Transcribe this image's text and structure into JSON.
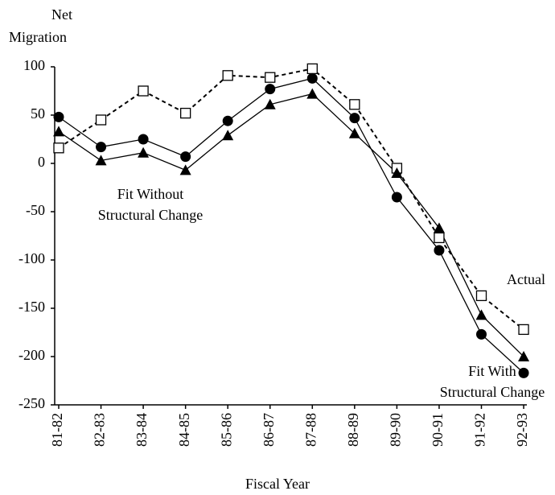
{
  "chart_data": {
    "type": "line",
    "y_label": [
      "Net",
      "Migration"
    ],
    "x_label": "Fiscal Year",
    "categories": [
      "81-82",
      "82-83",
      "83-84",
      "84-85",
      "85-86",
      "86-87",
      "87-88",
      "88-89",
      "89-90",
      "90-91",
      "91-92",
      "92-93"
    ],
    "series": [
      {
        "name": "Actual",
        "color": "#000000",
        "marker": "square",
        "dashed": true,
        "values": [
          16,
          45,
          75,
          52,
          91,
          89,
          98,
          61,
          -5,
          -77,
          -137,
          -172
        ]
      },
      {
        "name": "Fit With Structural Change",
        "color": "#000000",
        "marker": "circle",
        "dashed": false,
        "values": [
          48,
          17,
          25,
          7,
          44,
          77,
          88,
          47,
          -35,
          -90,
          -177,
          -217
        ]
      },
      {
        "name": "Fit Without Structural Change",
        "color": "#000000",
        "marker": "triangle",
        "dashed": false,
        "values": [
          33,
          3,
          11,
          -7,
          29,
          61,
          72,
          31,
          -10,
          -67,
          -157,
          -200
        ]
      }
    ],
    "ylim": [
      -250,
      100
    ],
    "yticks": [
      -250,
      -200,
      -150,
      -100,
      -50,
      0,
      50,
      100
    ]
  }
}
